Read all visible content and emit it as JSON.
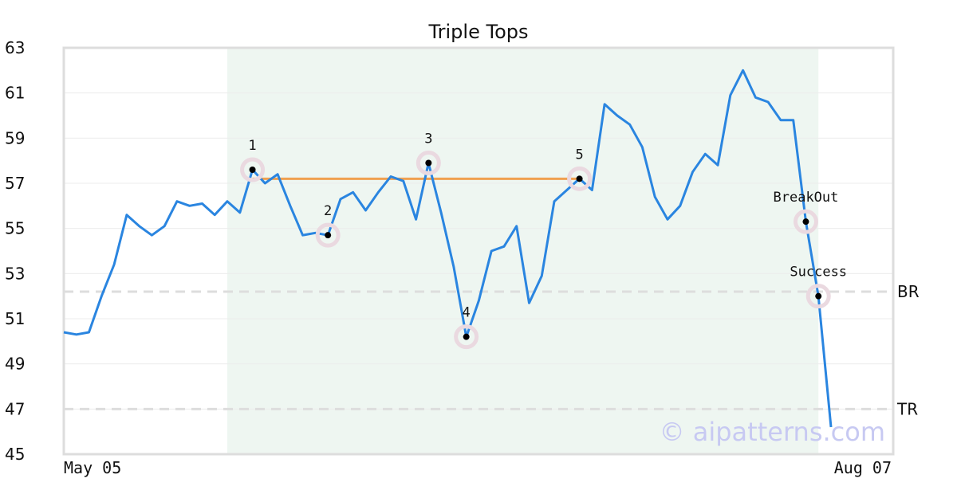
{
  "chart_data": {
    "type": "line",
    "title": "Triple Tops",
    "ylim": [
      45,
      63
    ],
    "y_ticks": [
      "45",
      "47",
      "49",
      "51",
      "53",
      "55",
      "57",
      "59",
      "61",
      "63"
    ],
    "x_tick_labels": {
      "start": "May 05",
      "end": "Aug 07"
    },
    "grid": "horizontal",
    "series": [
      {
        "values": [
          50.4,
          50.3,
          50.4,
          52.0,
          53.4,
          55.6,
          55.1,
          54.7,
          55.1,
          56.2,
          56.0,
          56.1,
          55.6,
          56.2,
          55.7,
          57.6,
          57.0,
          57.4,
          56.0,
          54.7,
          54.8,
          54.7,
          56.3,
          56.6,
          55.8,
          56.6,
          57.3,
          57.1,
          55.4,
          57.9,
          55.7,
          53.3,
          50.2,
          51.8,
          54.0,
          54.2,
          55.1,
          51.7,
          52.9,
          56.2,
          56.7,
          57.2,
          56.7,
          60.5,
          60.0,
          59.6,
          58.6,
          56.4,
          55.4,
          56.0,
          57.5,
          58.3,
          57.8,
          60.9,
          62.0,
          60.8,
          60.6,
          59.8,
          59.8,
          55.3,
          52.0,
          46.2
        ],
        "color": "#2a85e0"
      }
    ],
    "shaded_region": {
      "start_index": 13,
      "end_index": 60,
      "color": "#eef6f1"
    },
    "resistance_line": {
      "start_index": 15,
      "end_index": 41,
      "y": 57.2,
      "color": "#f0a050"
    },
    "levels": [
      {
        "label": "BR",
        "y": 52.2
      },
      {
        "label": "TR",
        "y": 47.0
      }
    ],
    "points": [
      {
        "label": "1",
        "index": 15,
        "y": 57.6,
        "label_pos": "above"
      },
      {
        "label": "2",
        "index": 21,
        "y": 54.7,
        "label_pos": "above"
      },
      {
        "label": "3",
        "index": 29,
        "y": 57.9,
        "label_pos": "above"
      },
      {
        "label": "4",
        "index": 32,
        "y": 50.2,
        "label_pos": "above"
      },
      {
        "label": "5",
        "index": 41,
        "y": 57.2,
        "label_pos": "above"
      },
      {
        "label": "BreakOut",
        "index": 59,
        "y": 55.3,
        "label_pos": "above"
      },
      {
        "label": "Success",
        "index": 60,
        "y": 52.0,
        "label_pos": "above"
      }
    ],
    "watermark": "© aipatterns.com"
  },
  "colors": {
    "frame": "#dddddd",
    "grid": "#ececec",
    "level_line": "#dddddd",
    "marker_ring": "#ead9e0",
    "marker_dot": "#000000"
  }
}
